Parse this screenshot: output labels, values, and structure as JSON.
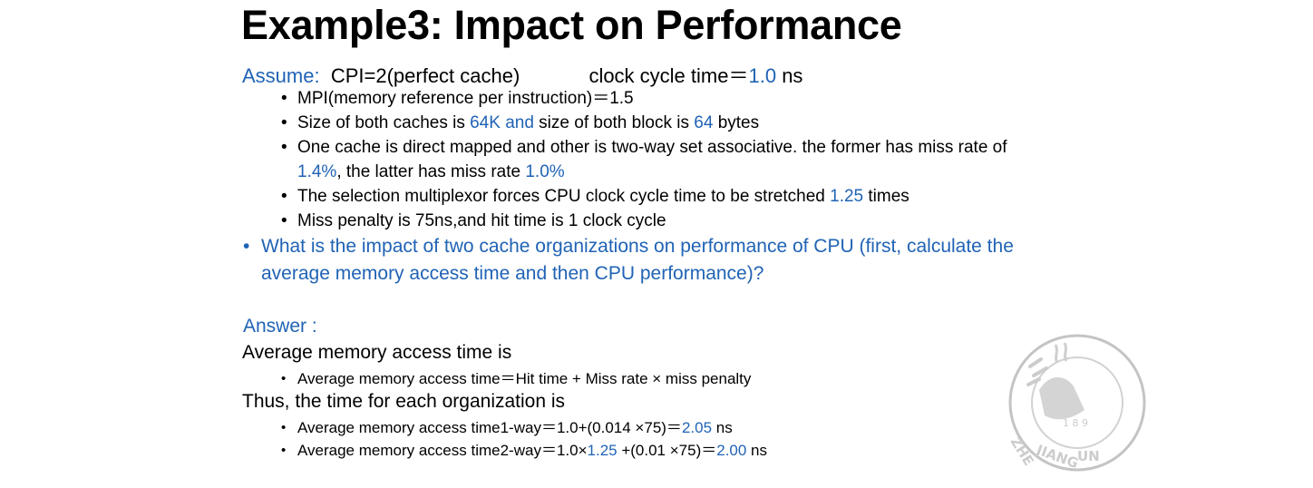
{
  "title": "Example3: Impact on Performance",
  "assume": {
    "label": "Assume:",
    "cpi": "CPI=2(perfect cache)",
    "clock_prefix": "clock cycle time＝",
    "clock_value": "1.0",
    "clock_unit": " ns"
  },
  "bullets": {
    "mpi": "MPI(memory reference per instruction)＝1.5",
    "size": {
      "t1": "Size of both caches is ",
      "v1": "64K and",
      "t2": " size of both block is ",
      "v2": "64",
      "t3": " bytes"
    },
    "cache": {
      "t1": "One cache is direct mapped and other is two-way set associative. the former has miss rate of",
      "v1": "1.4%",
      "t2": ", the latter has miss rate ",
      "v2": "1.0%"
    },
    "mux": {
      "t1": "The selection multiplexor forces CPU clock cycle time to be stretched ",
      "v1": "1.25",
      "t2": " times"
    },
    "penalty": "Miss penalty is 75ns,and hit time is 1 clock cycle"
  },
  "question": {
    "line1": "What is the impact of two cache organizations on performance of CPU (first, calculate the",
    "line2": "average memory access time and then CPU performance)?"
  },
  "answer": {
    "label": "Answer :",
    "line1": "Average memory access time is",
    "formula": "Average memory access time＝Hit time + Miss rate × miss penalty",
    "line2": "Thus, the time for each organization is",
    "one_way": {
      "t1": "Average memory access time1-way＝1.0+(0.014 ×75)＝",
      "v1": "2.05",
      "t2": " ns"
    },
    "two_way": {
      "t1": "Average memory access time2-way＝1.0×",
      "v1": "1.25",
      "t2": " +(0.01 ×75)＝",
      "v2": "2.00",
      "t3": " ns"
    }
  },
  "colors": {
    "accent": "#2063b5",
    "text": "#000000",
    "watermark": "#c4c4c4"
  },
  "watermark": {
    "icon": "university-seal-icon",
    "text": "ZHEJIANG UNIVERSITY 1897"
  }
}
